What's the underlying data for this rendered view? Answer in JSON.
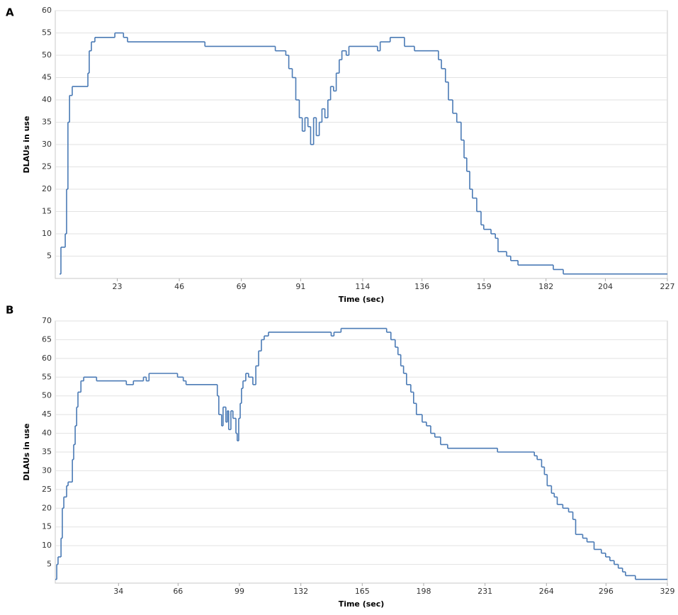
{
  "chart_data": [
    {
      "type": "line",
      "panel": "A",
      "drawstyle": "steps-post",
      "color": "#4a7ab5",
      "grid": true,
      "xlabel": "Time (sec)",
      "ylabel": "DLAUs in use",
      "xlim": [
        0,
        227
      ],
      "ylim": [
        0,
        60
      ],
      "xticks": [
        23,
        46,
        69,
        91,
        114,
        136,
        159,
        182,
        204,
        227
      ],
      "yticks": [
        5,
        10,
        15,
        20,
        25,
        30,
        35,
        40,
        45,
        50,
        55,
        60
      ],
      "x": [
        1.6,
        2.1,
        3.7,
        4.2,
        4.7,
        5.3,
        6.3,
        12.1,
        12.6,
        13.4,
        14.7,
        22.1,
        25.3,
        26.8,
        55.5,
        81.6,
        85.5,
        86.6,
        87.9,
        89.2,
        90.5,
        91.6,
        92.6,
        93.7,
        94.7,
        95.8,
        96.8,
        97.9,
        98.9,
        100,
        101.1,
        102.1,
        103.2,
        104.2,
        105.3,
        106.3,
        107.9,
        108.9,
        119.5,
        120.5,
        124.2,
        129.5,
        133.2,
        142.1,
        143.2,
        144.7,
        145.8,
        147.4,
        148.9,
        150.5,
        151.6,
        152.6,
        153.7,
        154.7,
        156.3,
        157.9,
        158.9,
        161.6,
        163.2,
        164.2,
        167.4,
        168.9,
        171.6,
        184.7,
        188.4,
        227
      ],
      "values": [
        1,
        7,
        10,
        20,
        35,
        41,
        43,
        46,
        51,
        53,
        54,
        55,
        54,
        53,
        52,
        51,
        50,
        47,
        45,
        40,
        36,
        33,
        36,
        34,
        30,
        36,
        32,
        35,
        38,
        36,
        40,
        43,
        42,
        46,
        49,
        51,
        50,
        52,
        51,
        53,
        54,
        52,
        51,
        49,
        47,
        44,
        40,
        37,
        35,
        31,
        27,
        24,
        20,
        18,
        15,
        12,
        11,
        10,
        9,
        6,
        5,
        4,
        3,
        2,
        1,
        1
      ]
    },
    {
      "type": "line",
      "panel": "B",
      "drawstyle": "steps-post",
      "color": "#4a7ab5",
      "grid": true,
      "xlabel": "Time (sec)",
      "ylabel": "DLAUs in use",
      "xlim": [
        0,
        329
      ],
      "ylim": [
        0,
        70
      ],
      "xticks": [
        34,
        66,
        99,
        132,
        165,
        198,
        231,
        264,
        296,
        329
      ],
      "yticks": [
        5,
        10,
        15,
        20,
        25,
        30,
        35,
        40,
        45,
        50,
        55,
        60,
        65,
        70
      ],
      "x": [
        0,
        0.8,
        1.5,
        3.1,
        3.8,
        4.6,
        6.1,
        6.9,
        9.2,
        9.9,
        10.7,
        11.5,
        12.2,
        13.8,
        15.3,
        22.2,
        38.2,
        42,
        47.4,
        48.9,
        50.4,
        65.7,
        68.8,
        70.3,
        87.1,
        87.9,
        89.4,
        90.2,
        91.7,
        92.5,
        93.2,
        94.4,
        95.5,
        97.1,
        97.8,
        98.6,
        99.4,
        100.1,
        100.9,
        102.4,
        103.9,
        106.2,
        107.8,
        109.3,
        110.8,
        112.3,
        114.6,
        148.3,
        149.8,
        153.6,
        178.1,
        180.4,
        182.7,
        184.2,
        185.7,
        187.2,
        188.8,
        191.1,
        192.6,
        194.1,
        197.2,
        199.5,
        201.8,
        204,
        207.1,
        210.9,
        237.7,
        257.5,
        259,
        261.4,
        262.9,
        264.4,
        266.7,
        268.2,
        269.8,
        272.8,
        275.9,
        278.2,
        279.7,
        283.5,
        285.8,
        289.6,
        293.5,
        295.8,
        298.1,
        300.4,
        302.6,
        304.9,
        306.5,
        311.8,
        329
      ],
      "values": [
        1,
        5,
        7,
        12,
        20,
        23,
        26,
        27,
        33,
        37,
        42,
        47,
        51,
        54,
        55,
        54,
        53,
        54,
        55,
        54,
        56,
        55,
        54,
        53,
        50,
        45,
        42,
        47,
        43,
        46,
        41,
        46,
        44,
        40,
        38,
        44,
        48,
        52,
        54,
        56,
        55,
        53,
        58,
        62,
        65,
        66,
        67,
        66,
        67,
        68,
        67,
        65,
        63,
        61,
        58,
        56,
        53,
        51,
        48,
        45,
        43,
        42,
        40,
        39,
        37,
        36,
        35,
        34,
        33,
        31,
        29,
        26,
        24,
        23,
        21,
        20,
        19,
        17,
        13,
        12,
        11,
        9,
        8,
        7,
        6,
        5,
        4,
        3,
        2,
        1,
        1
      ]
    }
  ]
}
